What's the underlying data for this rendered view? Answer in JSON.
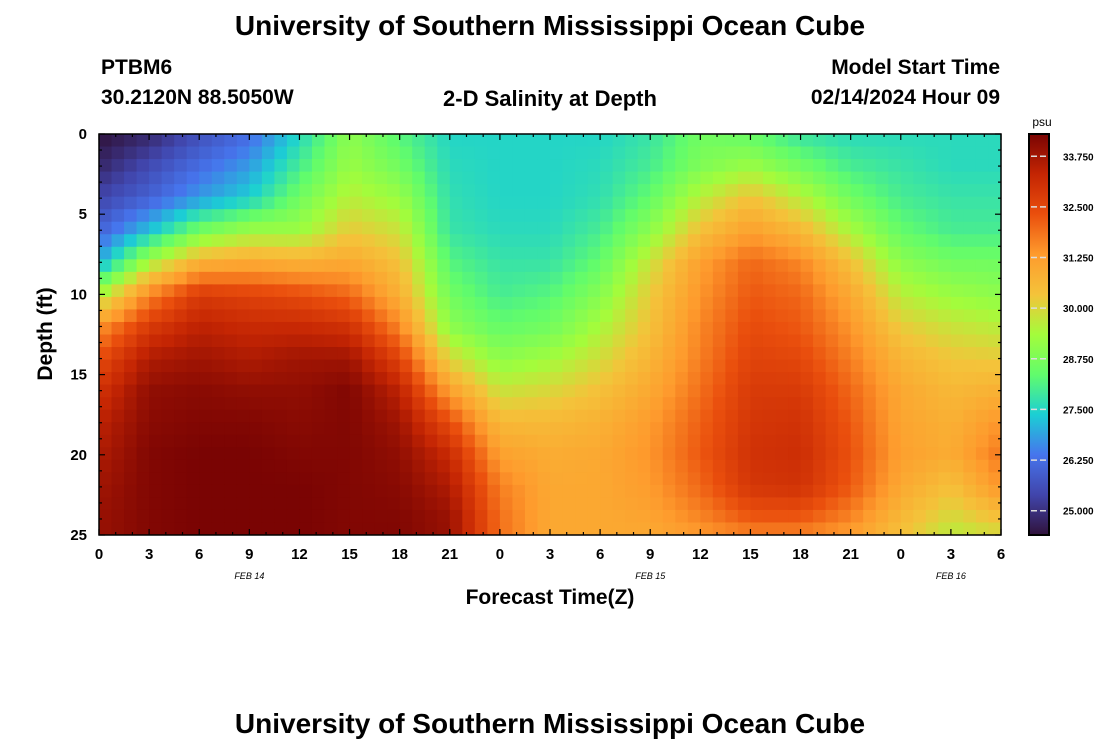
{
  "header": {
    "title": "University of Southern Mississippi Ocean Cube",
    "station_id": "PTBM6",
    "station_coords": "30.2120N  88.5050W",
    "plot_title": "2-D Salinity at Depth",
    "model_start_label": "Model Start Time",
    "model_start_value": "02/14/2024 Hour 09"
  },
  "footer": {
    "title": "University of Southern Mississippi Ocean Cube"
  },
  "chart_data": {
    "type": "heatmap",
    "title": "2-D Salinity at Depth",
    "xlabel": "Forecast Time(Z)",
    "ylabel": "Depth (ft)",
    "x_tick_labels": [
      "0",
      "3",
      "6",
      "9",
      "12",
      "15",
      "18",
      "21",
      "0",
      "3",
      "6",
      "9",
      "12",
      "15",
      "18",
      "21",
      "0",
      "3",
      "6"
    ],
    "x_range_hours": [
      0,
      54
    ],
    "date_labels": [
      {
        "label": "FEB 14",
        "at_hour": 9
      },
      {
        "label": "FEB 15",
        "at_hour": 33
      },
      {
        "label": "FEB 16",
        "at_hour": 51
      }
    ],
    "y_ticks": [
      0,
      5,
      10,
      15,
      20,
      25
    ],
    "ylim": [
      0,
      25
    ],
    "y_inverted": true,
    "colorbar": {
      "unit": "psu",
      "range": [
        24.4,
        34.3
      ],
      "tick_labels": [
        "33.750",
        "32.500",
        "31.250",
        "30.000",
        "28.750",
        "27.500",
        "26.250",
        "25.000"
      ],
      "tick_values": [
        33.75,
        32.5,
        31.25,
        30.0,
        28.75,
        27.5,
        26.25,
        25.0
      ],
      "colors": [
        "#30123b",
        "#4145ab",
        "#4675ed",
        "#1bcfd4",
        "#61fc6c",
        "#a4fc3b",
        "#f4c33a",
        "#fe9b2d",
        "#ea4f0d",
        "#c42503",
        "#7a0403"
      ]
    },
    "grid": {
      "time_hours": [
        0,
        3,
        6,
        9,
        12,
        15,
        18,
        21,
        24,
        27,
        30,
        33,
        36,
        39,
        42,
        45,
        48,
        51,
        54
      ],
      "depth_ft": [
        0,
        2,
        4,
        6,
        8,
        10,
        12,
        14,
        16,
        18,
        20,
        22,
        24,
        25
      ],
      "salinity_psu": [
        [
          24.4,
          24.8,
          25.6,
          26.2,
          27.5,
          29.0,
          28.2,
          27.5,
          27.5,
          27.5,
          27.5,
          27.8,
          28.6,
          28.4,
          27.8,
          27.6,
          27.6,
          27.6,
          27.6
        ],
        [
          24.8,
          25.5,
          26.2,
          26.8,
          28.0,
          29.2,
          28.6,
          27.6,
          27.5,
          27.5,
          27.6,
          28.0,
          28.8,
          29.2,
          28.6,
          28.0,
          27.8,
          27.6,
          27.6
        ],
        [
          25.4,
          26.0,
          26.8,
          27.4,
          28.6,
          29.6,
          29.2,
          27.7,
          27.5,
          27.5,
          27.7,
          28.4,
          29.6,
          30.4,
          29.6,
          28.6,
          28.0,
          27.8,
          27.8
        ],
        [
          26.0,
          27.2,
          28.6,
          29.2,
          29.2,
          30.2,
          29.8,
          27.8,
          27.6,
          27.6,
          28.0,
          29.0,
          30.4,
          31.2,
          30.6,
          29.4,
          28.4,
          28.0,
          28.0
        ],
        [
          27.0,
          29.4,
          30.8,
          31.0,
          30.8,
          31.0,
          30.4,
          28.2,
          27.8,
          27.8,
          28.4,
          29.8,
          31.2,
          32.0,
          31.6,
          30.4,
          29.0,
          28.6,
          28.6
        ],
        [
          29.4,
          31.6,
          32.8,
          32.6,
          32.4,
          32.0,
          30.8,
          28.6,
          28.0,
          28.2,
          28.9,
          30.2,
          31.4,
          32.2,
          32.0,
          31.0,
          29.6,
          29.2,
          29.0
        ],
        [
          31.4,
          32.8,
          33.4,
          33.2,
          33.2,
          33.0,
          31.6,
          29.0,
          28.4,
          28.6,
          29.4,
          30.4,
          31.6,
          32.4,
          32.2,
          31.4,
          30.2,
          29.8,
          29.6
        ],
        [
          32.4,
          33.6,
          33.8,
          33.6,
          33.8,
          33.8,
          32.6,
          30.0,
          29.0,
          29.3,
          29.9,
          30.7,
          31.7,
          32.6,
          32.5,
          31.7,
          30.7,
          30.3,
          30.2
        ],
        [
          33.0,
          34.0,
          34.1,
          34.0,
          34.0,
          34.2,
          33.4,
          31.2,
          29.8,
          30.0,
          30.4,
          31.0,
          31.9,
          32.8,
          32.8,
          32.0,
          31.0,
          30.6,
          30.8
        ],
        [
          33.4,
          34.1,
          34.2,
          34.2,
          34.1,
          34.2,
          33.8,
          32.4,
          30.6,
          30.6,
          30.8,
          31.3,
          32.1,
          32.9,
          33.0,
          32.2,
          31.1,
          30.8,
          31.4
        ],
        [
          33.6,
          34.2,
          34.3,
          34.3,
          34.2,
          34.2,
          34.0,
          33.2,
          31.2,
          30.9,
          31.0,
          31.4,
          32.2,
          33.0,
          33.1,
          32.3,
          31.2,
          30.9,
          31.8
        ],
        [
          33.8,
          34.2,
          34.3,
          34.3,
          34.3,
          34.2,
          34.1,
          33.6,
          31.7,
          31.0,
          31.0,
          31.3,
          32.0,
          32.9,
          33.0,
          32.2,
          31.0,
          30.4,
          31.4
        ],
        [
          33.9,
          34.2,
          34.3,
          34.3,
          34.3,
          34.2,
          34.2,
          33.9,
          31.9,
          31.0,
          31.0,
          31.1,
          31.6,
          32.2,
          32.2,
          31.6,
          30.6,
          29.9,
          30.4
        ],
        [
          33.9,
          34.2,
          34.3,
          34.3,
          34.3,
          34.2,
          34.2,
          33.9,
          31.9,
          31.0,
          31.0,
          31.0,
          31.3,
          31.6,
          31.6,
          31.2,
          30.4,
          29.6,
          29.9
        ]
      ]
    }
  }
}
